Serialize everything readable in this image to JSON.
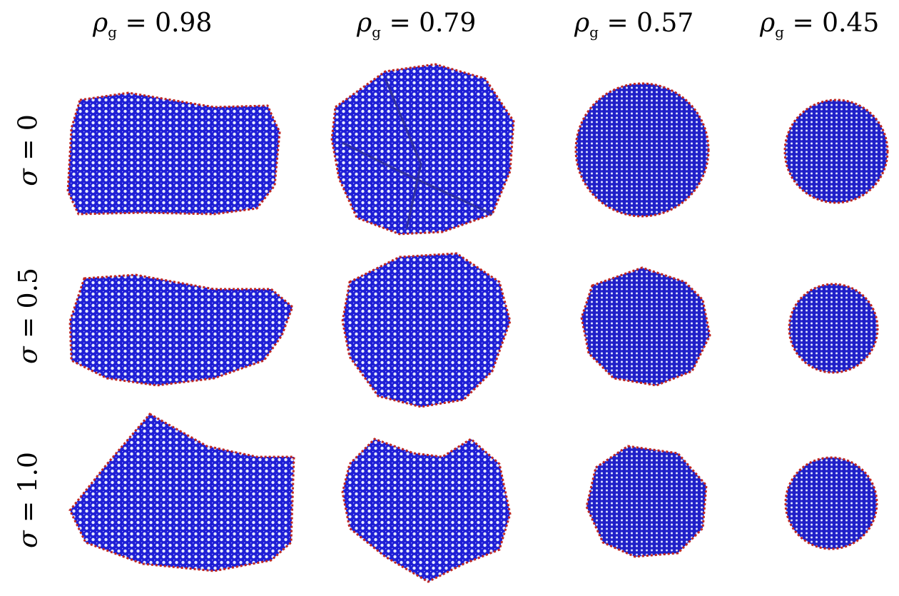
{
  "columns": [
    {
      "symbol": "ρ",
      "subscript": "g",
      "equals": "=",
      "value": "0.98"
    },
    {
      "symbol": "ρ",
      "subscript": "g",
      "equals": "=",
      "value": "0.79"
    },
    {
      "symbol": "ρ",
      "subscript": "g",
      "equals": "=",
      "value": "0.57"
    },
    {
      "symbol": "ρ",
      "subscript": "g",
      "equals": "=",
      "value": "0.45"
    }
  ],
  "rows": [
    {
      "symbol": "σ",
      "equals": "=",
      "value": "0"
    },
    {
      "symbol": "σ",
      "equals": "=",
      "value": "0.5"
    },
    {
      "symbol": "σ",
      "equals": "=",
      "value": "1.0"
    }
  ],
  "colors": {
    "mesh_primary": "#1f1fd6",
    "mesh_edge": "#c0261f",
    "background": "#ffffff"
  }
}
